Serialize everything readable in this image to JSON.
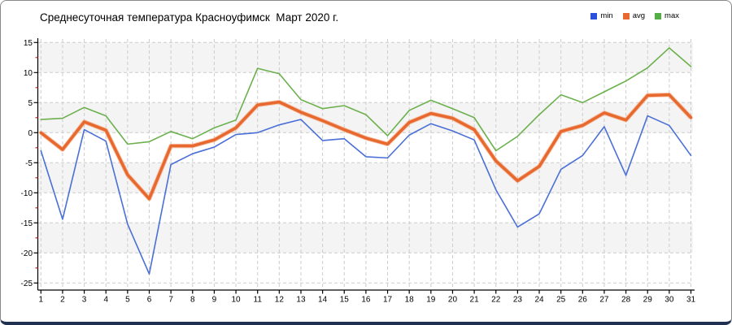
{
  "window": {
    "title": "Среднесуточная температура Красноуфимск  Март 2020 г."
  },
  "legend": {
    "items": [
      {
        "label": "min",
        "color": "#2a50dd"
      },
      {
        "label": "avg",
        "color": "#e8692f"
      },
      {
        "label": "max",
        "color": "#53b043"
      }
    ]
  },
  "colors": {
    "min_line": "#4a6fd6",
    "avg_line": "#e8692f",
    "avg_halo": "#f5a478",
    "max_line": "#6cb14e",
    "grid": "#cccccc",
    "band": "#f4f4f4",
    "axis": "#000000",
    "minor_tick": "#cc2222",
    "frame_bottom": "#203050"
  },
  "chart_data": {
    "type": "line",
    "title": "Среднесуточная температура Красноуфимск  Март 2020 г.",
    "xlabel": "",
    "ylabel": "",
    "ylim": [
      -25,
      15
    ],
    "grid": true,
    "legend_position": "top-right",
    "yticks": [
      15,
      10,
      5,
      0,
      -5,
      -10,
      -15,
      -20,
      -25
    ],
    "yticks_minor": [
      12.5,
      7.5,
      2.5,
      -2.5,
      -7.5,
      -12.5,
      -17.5,
      -22.5
    ],
    "x": [
      1,
      2,
      3,
      4,
      5,
      6,
      7,
      8,
      9,
      10,
      11,
      12,
      13,
      14,
      15,
      16,
      17,
      18,
      19,
      20,
      21,
      22,
      23,
      24,
      25,
      26,
      27,
      28,
      29,
      30,
      31
    ],
    "series": [
      {
        "name": "min",
        "color": "#4a6fd6",
        "width": 1.6,
        "values": [
          -3.0,
          -14.4,
          0.5,
          -1.4,
          -15.2,
          -23.5,
          -5.3,
          -3.5,
          -2.4,
          -0.3,
          0.0,
          1.3,
          2.2,
          -1.3,
          -1.0,
          -4.0,
          -4.2,
          -0.4,
          1.5,
          0.3,
          -1.2,
          -9.5,
          -15.7,
          -13.5,
          -6.1,
          -3.8,
          1.0,
          -7.1,
          2.8,
          1.2,
          -3.8
        ]
      },
      {
        "name": "avg",
        "color": "#e8692f",
        "halo": "#f5a478",
        "width": 3.6,
        "values": [
          0.0,
          -2.8,
          1.8,
          0.4,
          -7.0,
          -11.0,
          -2.2,
          -2.2,
          -1.2,
          0.8,
          4.6,
          5.1,
          3.4,
          2.0,
          0.5,
          -0.9,
          -1.9,
          1.7,
          3.2,
          2.4,
          0.5,
          -4.7,
          -8.0,
          -5.6,
          0.2,
          1.2,
          3.3,
          2.1,
          6.2,
          6.3,
          2.5
        ]
      },
      {
        "name": "max",
        "color": "#6cb14e",
        "width": 1.6,
        "values": [
          2.2,
          2.4,
          4.2,
          2.8,
          -1.9,
          -1.5,
          0.2,
          -1.0,
          0.8,
          2.1,
          10.7,
          9.8,
          5.5,
          4.0,
          4.5,
          3.0,
          -0.5,
          3.7,
          5.4,
          4.0,
          2.5,
          -3.0,
          -0.6,
          3.0,
          6.3,
          5.0,
          6.8,
          8.6,
          10.8,
          14.1,
          11.0
        ]
      }
    ]
  }
}
